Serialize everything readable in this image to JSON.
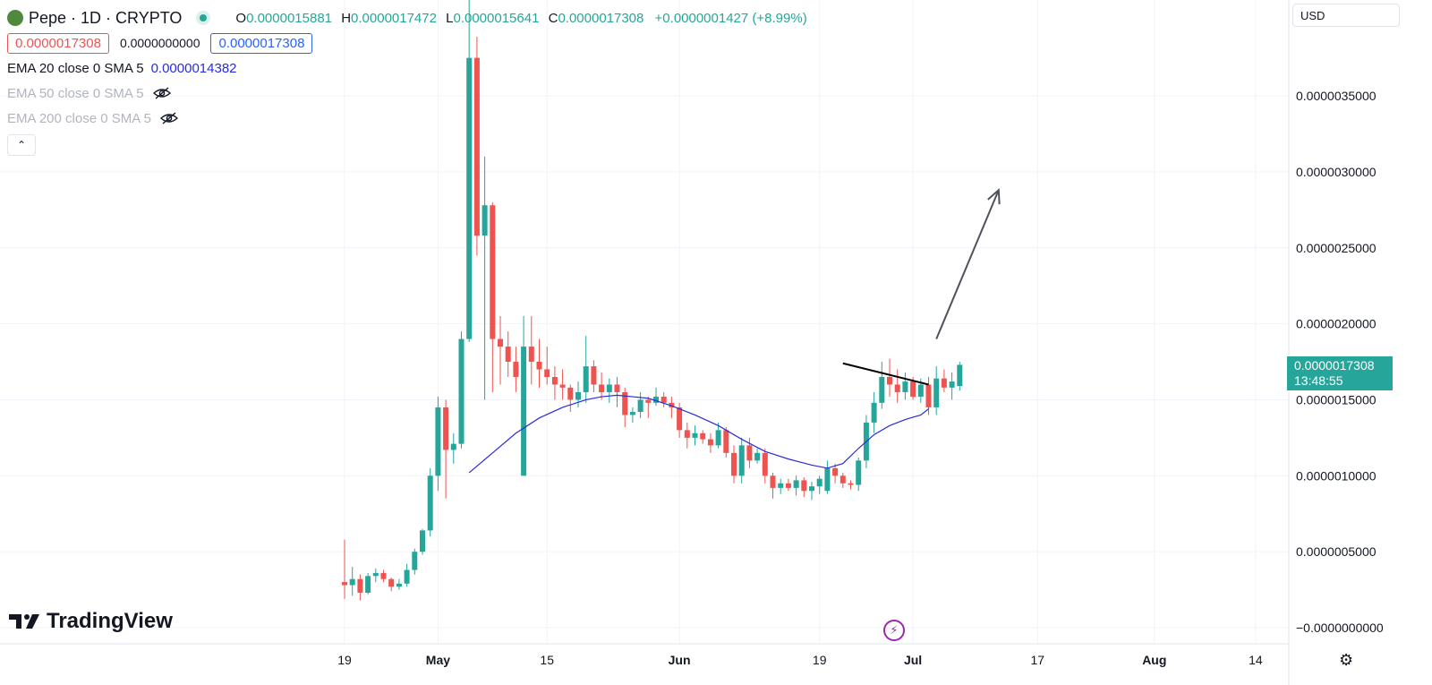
{
  "header": {
    "symbol_title": "Pepe · 1D · CRYPTO",
    "ohlc": [
      {
        "key": "O",
        "value": "0.0000015881"
      },
      {
        "key": "H",
        "value": "0.0000017472"
      },
      {
        "key": "L",
        "value": "0.0000015641"
      },
      {
        "key": "C",
        "value": "0.0000017308"
      }
    ],
    "change": "+0.0000001427 (+8.99%)",
    "bid": "0.0000017308",
    "spread": "0.0000000000",
    "ask": "0.0000017308"
  },
  "indicators": [
    {
      "label": "EMA 20 close 0 SMA 5",
      "value": "0.0000014382",
      "hidden": false
    },
    {
      "label": "EMA 50 close 0 SMA 5",
      "value": "",
      "hidden": true
    },
    {
      "label": "EMA 200 close 0 SMA 5",
      "value": "",
      "hidden": true
    }
  ],
  "toolbar": {
    "collapse_icon": "chevron-up-icon",
    "currency": "USD",
    "settings_icon": "gear-icon",
    "flash_icon": "lightning-icon"
  },
  "brand": {
    "name": "TradingView"
  },
  "last_price": {
    "price": "0.0000017308",
    "countdown": "13:48:55"
  },
  "colors": {
    "up": "#26a69a",
    "down": "#ef5350",
    "ema": "#2a2cd9",
    "arrow": "#50535e",
    "trendline": "#000000"
  },
  "chart_data": {
    "type": "candlestick",
    "title": "Pepe · 1D · CRYPTO",
    "y_unit": "USD",
    "yticks": [
      "0.0000035000",
      "0.0000030000",
      "0.0000025000",
      "0.0000020000",
      "0.0000015000",
      "0.0000010000",
      "0.0000005000",
      "−0.0000000000"
    ],
    "ytick_values": [
      3.5e-06,
      3e-06,
      2.5e-06,
      2e-06,
      1.5e-06,
      1e-06,
      5e-07,
      0
    ],
    "ylim": [
      -1e-07,
      4.2e-06
    ],
    "xticks": [
      {
        "label": "19",
        "day": 0,
        "bold": false
      },
      {
        "label": "May",
        "day": 12,
        "bold": true
      },
      {
        "label": "15",
        "day": 26,
        "bold": false
      },
      {
        "label": "Jun",
        "day": 43,
        "bold": true
      },
      {
        "label": "19",
        "day": 61,
        "bold": false
      },
      {
        "label": "Jul",
        "day": 73,
        "bold": true
      },
      {
        "label": "17",
        "day": 89,
        "bold": false
      },
      {
        "label": "Aug",
        "day": 104,
        "bold": true
      },
      {
        "label": "14",
        "day": 117,
        "bold": false
      }
    ],
    "candles": [
      [
        3e-07,
        5.8e-07,
        1.9e-07,
        2.8e-07
      ],
      [
        2.8e-07,
        4e-07,
        2.1e-07,
        3.2e-07
      ],
      [
        3.2e-07,
        3.5e-07,
        1.8e-07,
        2.3e-07
      ],
      [
        2.3e-07,
        3.6e-07,
        2.2e-07,
        3.4e-07
      ],
      [
        3.4e-07,
        3.9e-07,
        3e-07,
        3.6e-07
      ],
      [
        3.6e-07,
        3.8e-07,
        3e-07,
        3.2e-07
      ],
      [
        3.2e-07,
        3.3e-07,
        2.4e-07,
        2.7e-07
      ],
      [
        2.7e-07,
        3.2e-07,
        2.5e-07,
        2.9e-07
      ],
      [
        2.9e-07,
        4.2e-07,
        2.7e-07,
        3.8e-07
      ],
      [
        3.8e-07,
        5.2e-07,
        3.5e-07,
        5e-07
      ],
      [
        5e-07,
        6.5e-07,
        4.8e-07,
        6.4e-07
      ],
      [
        6.4e-07,
        1.05e-06,
        6e-07,
        1e-06
      ],
      [
        1e-06,
        1.52e-06,
        9e-07,
        1.45e-06
      ],
      [
        1.45e-06,
        1.5e-06,
        8.5e-07,
        1.17e-06
      ],
      [
        1.17e-06,
        1.28e-06,
        1.08e-06,
        1.21e-06
      ],
      [
        1.21e-06,
        1.95e-06,
        1.18e-06,
        1.9e-06
      ],
      [
        1.9e-06,
        4.25e-06,
        1.88e-06,
        3.75e-06
      ],
      [
        3.75e-06,
        3.89e-06,
        2.45e-06,
        2.58e-06
      ],
      [
        2.58e-06,
        3.1e-06,
        1.5e-06,
        2.78e-06
      ],
      [
        2.78e-06,
        2.8e-06,
        1.55e-06,
        1.9e-06
      ],
      [
        1.9e-06,
        2.05e-06,
        1.6e-06,
        1.85e-06
      ],
      [
        1.85e-06,
        1.95e-06,
        1.65e-06,
        1.75e-06
      ],
      [
        1.75e-06,
        1.85e-06,
        1.55e-06,
        1.65e-06
      ],
      [
        1e-06,
        2.05e-06,
        1e-06,
        1.85e-06
      ],
      [
        1.85e-06,
        2.05e-06,
        1.6e-06,
        1.75e-06
      ],
      [
        1.75e-06,
        1.9e-06,
        1.58e-06,
        1.7e-06
      ],
      [
        1.7e-06,
        1.85e-06,
        1.6e-06,
        1.65e-06
      ],
      [
        1.65e-06,
        1.72e-06,
        1.5e-06,
        1.6e-06
      ],
      [
        1.6e-06,
        1.7e-06,
        1.5e-06,
        1.58e-06
      ],
      [
        1.58e-06,
        1.6e-06,
        1.42e-06,
        1.5e-06
      ],
      [
        1.5e-06,
        1.62e-06,
        1.45e-06,
        1.55e-06
      ],
      [
        1.55e-06,
        1.92e-06,
        1.48e-06,
        1.72e-06
      ],
      [
        1.72e-06,
        1.76e-06,
        1.55e-06,
        1.6e-06
      ],
      [
        1.6e-06,
        1.68e-06,
        1.5e-06,
        1.55e-06
      ],
      [
        1.55e-06,
        1.64e-06,
        1.48e-06,
        1.6e-06
      ],
      [
        1.6e-06,
        1.65e-06,
        1.45e-06,
        1.55e-06
      ],
      [
        1.55e-06,
        1.58e-06,
        1.32e-06,
        1.4e-06
      ],
      [
        1.4e-06,
        1.45e-06,
        1.35e-06,
        1.42e-06
      ],
      [
        1.42e-06,
        1.55e-06,
        1.38e-06,
        1.5e-06
      ],
      [
        1.5e-06,
        1.52e-06,
        1.38e-06,
        1.48e-06
      ],
      [
        1.48e-06,
        1.58e-06,
        1.46e-06,
        1.52e-06
      ],
      [
        1.52e-06,
        1.55e-06,
        1.45e-06,
        1.48e-06
      ],
      [
        1.48e-06,
        1.52e-06,
        1.38e-06,
        1.45e-06
      ],
      [
        1.45e-06,
        1.48e-06,
        1.25e-06,
        1.3e-06
      ],
      [
        1.3e-06,
        1.35e-06,
        1.18e-06,
        1.25e-06
      ],
      [
        1.25e-06,
        1.33e-06,
        1.2e-06,
        1.28e-06
      ],
      [
        1.28e-06,
        1.3e-06,
        1.21e-06,
        1.24e-06
      ],
      [
        1.24e-06,
        1.28e-06,
        1.15e-06,
        1.2e-06
      ],
      [
        1.2e-06,
        1.35e-06,
        1.18e-06,
        1.3e-06
      ],
      [
        1.3e-06,
        1.32e-06,
        1.12e-06,
        1.15e-06
      ],
      [
        1.15e-06,
        1.2e-06,
        9.5e-07,
        1e-06
      ],
      [
        1e-06,
        1.25e-06,
        9.5e-07,
        1.2e-06
      ],
      [
        1.2e-06,
        1.25e-06,
        1.05e-06,
        1.1e-06
      ],
      [
        1.1e-06,
        1.18e-06,
        1.08e-06,
        1.15e-06
      ],
      [
        1.15e-06,
        1.18e-06,
        9.5e-07,
        1e-06
      ],
      [
        1e-06,
        1.02e-06,
        8.5e-07,
        9.2e-07
      ],
      [
        9.2e-07,
        9.8e-07,
        8.8e-07,
        9.5e-07
      ],
      [
        9.5e-07,
        9.8e-07,
        9e-07,
        9.2e-07
      ],
      [
        9.2e-07,
        1e-06,
        8.7e-07,
        9.7e-07
      ],
      [
        9.7e-07,
        9.9e-07,
        8.6e-07,
        9e-07
      ],
      [
        9e-07,
        9.6e-07,
        8.4e-07,
        9.3e-07
      ],
      [
        9.3e-07,
        1e-06,
        8.8e-07,
        9.8e-07
      ],
      [
        9e-07,
        1.1e-06,
        8.8e-07,
        1.05e-06
      ],
      [
        1.05e-06,
        1.08e-06,
        9.5e-07,
        1e-06
      ],
      [
        1e-06,
        1.02e-06,
        9.2e-07,
        9.5e-07
      ],
      [
        9.5e-07,
        9.7e-07,
        9.1e-07,
        9.4e-07
      ],
      [
        9.4e-07,
        1.12e-06,
        9e-07,
        1.1e-06
      ],
      [
        1.1e-06,
        1.4e-06,
        1.05e-06,
        1.35e-06
      ],
      [
        1.35e-06,
        1.55e-06,
        1.28e-06,
        1.48e-06
      ],
      [
        1.48e-06,
        1.75e-06,
        1.44e-06,
        1.65e-06
      ],
      [
        1.65e-06,
        1.77e-06,
        1.52e-06,
        1.6e-06
      ],
      [
        1.6e-06,
        1.7e-06,
        1.48e-06,
        1.55e-06
      ],
      [
        1.55e-06,
        1.68e-06,
        1.5e-06,
        1.62e-06
      ],
      [
        1.62e-06,
        1.65e-06,
        1.5e-06,
        1.52e-06
      ],
      [
        1.52e-06,
        1.64e-06,
        1.48e-06,
        1.6e-06
      ],
      [
        1.6e-06,
        1.65e-06,
        1.4e-06,
        1.45e-06
      ],
      [
        1.45e-06,
        1.72e-06,
        1.4e-06,
        1.64e-06
      ],
      [
        1.64e-06,
        1.7e-06,
        1.55e-06,
        1.58e-06
      ],
      [
        1.58e-06,
        1.68e-06,
        1.5e-06,
        1.62e-06
      ],
      [
        1.59e-06,
        1.75e-06,
        1.56e-06,
        1.73e-06
      ]
    ],
    "ema": [
      [
        1.02e-06,
        16
      ],
      [
        1.15e-06,
        19
      ],
      [
        1.28e-06,
        22
      ],
      [
        1.38e-06,
        25
      ],
      [
        1.45e-06,
        28
      ],
      [
        1.5e-06,
        31
      ],
      [
        1.52e-06,
        33
      ],
      [
        1.53e-06,
        35
      ],
      [
        1.52e-06,
        37
      ],
      [
        1.51e-06,
        39
      ],
      [
        1.46e-06,
        42
      ],
      [
        1.4e-06,
        45
      ],
      [
        1.33e-06,
        48
      ],
      [
        1.24e-06,
        51
      ],
      [
        1.16e-06,
        54
      ],
      [
        1.11e-06,
        57
      ],
      [
        1.07e-06,
        60
      ],
      [
        1.05e-06,
        62
      ],
      [
        1.08e-06,
        64
      ],
      [
        1.18e-06,
        66
      ],
      [
        1.27e-06,
        68
      ],
      [
        1.33e-06,
        70
      ],
      [
        1.37e-06,
        72
      ],
      [
        1.4e-06,
        74
      ],
      [
        1.44e-06,
        75
      ]
    ],
    "trendline": [
      [
        1.74e-06,
        64
      ],
      [
        1.6e-06,
        75
      ]
    ],
    "projection_arrow": [
      [
        1.9e-06,
        76
      ],
      [
        2.88e-06,
        84
      ]
    ]
  }
}
